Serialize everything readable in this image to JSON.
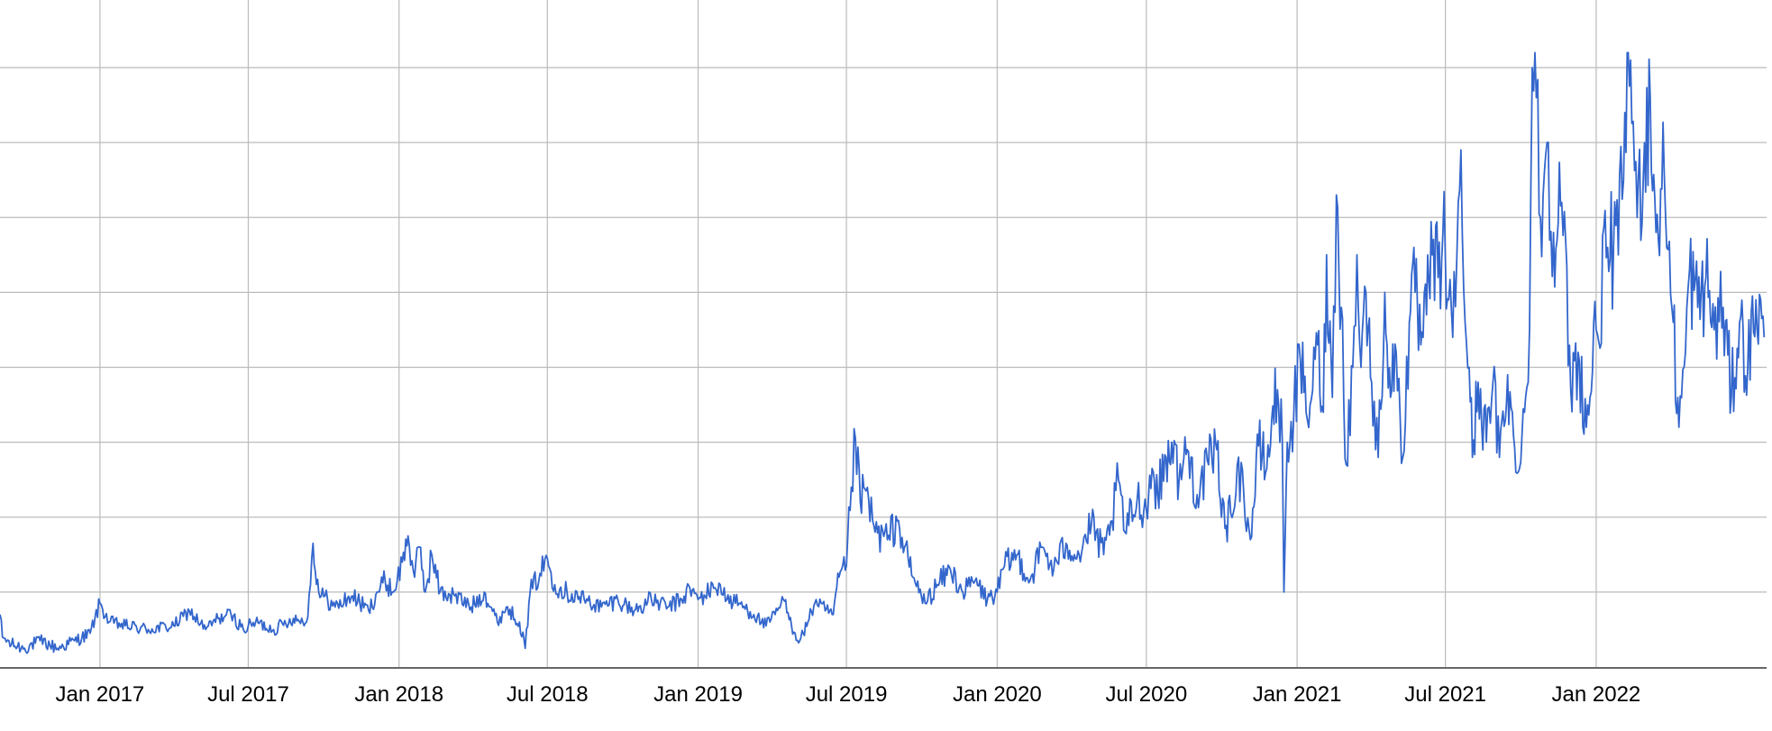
{
  "chart_data": {
    "type": "line",
    "title": "",
    "xlabel": "",
    "ylabel": "",
    "grid": true,
    "legend": "none",
    "xlim": [
      "2016-09-01",
      "2022-07-28"
    ],
    "ylim": [
      0,
      80
    ],
    "x_ticks": [
      {
        "date": "2017-01-01",
        "label": "Jan 2017"
      },
      {
        "date": "2017-07-01",
        "label": "Jul 2017"
      },
      {
        "date": "2018-01-01",
        "label": "Jan 2018"
      },
      {
        "date": "2018-07-01",
        "label": "Jul 2018"
      },
      {
        "date": "2019-01-01",
        "label": "Jan 2019"
      },
      {
        "date": "2019-07-01",
        "label": "Jul 2019"
      },
      {
        "date": "2020-01-01",
        "label": "Jan 2020"
      },
      {
        "date": "2020-07-01",
        "label": "Jul 2020"
      },
      {
        "date": "2021-01-01",
        "label": "Jan 2021"
      },
      {
        "date": "2021-07-01",
        "label": "Jul 2021"
      },
      {
        "date": "2022-01-01",
        "label": "Jan 2022"
      }
    ],
    "y_gridlines": [
      10,
      20,
      30,
      40,
      50,
      60,
      70,
      80
    ],
    "colors": {
      "line": "#3366cc",
      "grid": "#bbbbbb",
      "axis": "#333333"
    },
    "series": [
      {
        "points": [
          [
            "2016-09-01",
            7
          ],
          [
            "2016-09-04",
            4
          ],
          [
            "2016-09-15",
            3
          ],
          [
            "2016-10-01",
            2.5
          ],
          [
            "2016-10-20",
            3.5
          ],
          [
            "2016-11-10",
            2.5
          ],
          [
            "2016-12-01",
            3.5
          ],
          [
            "2016-12-20",
            4.5
          ],
          [
            "2017-01-01",
            8.5
          ],
          [
            "2017-01-12",
            6
          ],
          [
            "2017-02-01",
            5.5
          ],
          [
            "2017-03-01",
            5
          ],
          [
            "2017-04-01",
            5.5
          ],
          [
            "2017-04-20",
            7.5
          ],
          [
            "2017-05-10",
            5
          ],
          [
            "2017-05-25",
            6.5
          ],
          [
            "2017-06-10",
            7
          ],
          [
            "2017-06-25",
            5
          ],
          [
            "2017-07-10",
            6
          ],
          [
            "2017-08-01",
            5
          ],
          [
            "2017-08-25",
            6.5
          ],
          [
            "2017-09-10",
            6
          ],
          [
            "2017-09-15",
            11
          ],
          [
            "2017-09-18",
            16.5
          ],
          [
            "2017-09-25",
            10
          ],
          [
            "2017-10-15",
            8
          ],
          [
            "2017-11-05",
            9.5
          ],
          [
            "2017-11-25",
            7.5
          ],
          [
            "2017-12-05",
            10
          ],
          [
            "2017-12-15",
            11.5
          ],
          [
            "2017-12-25",
            10
          ],
          [
            "2018-01-05",
            14
          ],
          [
            "2018-01-12",
            17.5
          ],
          [
            "2018-01-20",
            12
          ],
          [
            "2018-01-26",
            16
          ],
          [
            "2018-02-02",
            10
          ],
          [
            "2018-02-10",
            15
          ],
          [
            "2018-02-20",
            10
          ],
          [
            "2018-03-10",
            9.5
          ],
          [
            "2018-03-30",
            8
          ],
          [
            "2018-04-15",
            10
          ],
          [
            "2018-05-01",
            6
          ],
          [
            "2018-05-12",
            8
          ],
          [
            "2018-05-28",
            6
          ],
          [
            "2018-06-04",
            2.5
          ],
          [
            "2018-06-10",
            10
          ],
          [
            "2018-06-22",
            12.5
          ],
          [
            "2018-07-01",
            14.5
          ],
          [
            "2018-07-10",
            11
          ],
          [
            "2018-07-25",
            10
          ],
          [
            "2018-08-15",
            9
          ],
          [
            "2018-09-05",
            8
          ],
          [
            "2018-09-25",
            9
          ],
          [
            "2018-10-15",
            7.5
          ],
          [
            "2018-11-05",
            9
          ],
          [
            "2018-11-25",
            8
          ],
          [
            "2018-12-12",
            9
          ],
          [
            "2018-12-22",
            10.5
          ],
          [
            "2019-01-01",
            9
          ],
          [
            "2019-01-20",
            10.5
          ],
          [
            "2019-01-28",
            11
          ],
          [
            "2019-02-05",
            9
          ],
          [
            "2019-02-20",
            8.5
          ],
          [
            "2019-03-10",
            7
          ],
          [
            "2019-03-25",
            5.5
          ],
          [
            "2019-04-05",
            7
          ],
          [
            "2019-04-15",
            9
          ],
          [
            "2019-04-25",
            5.5
          ],
          [
            "2019-05-05",
            3.5
          ],
          [
            "2019-05-15",
            6
          ],
          [
            "2019-05-25",
            9
          ],
          [
            "2019-06-05",
            7.5
          ],
          [
            "2019-06-15",
            7
          ],
          [
            "2019-06-22",
            12
          ],
          [
            "2019-07-01",
            13.5
          ],
          [
            "2019-07-07",
            24
          ],
          [
            "2019-07-12",
            30.5
          ],
          [
            "2019-07-18",
            22
          ],
          [
            "2019-07-25",
            23.5
          ],
          [
            "2019-08-05",
            18
          ],
          [
            "2019-08-20",
            17
          ],
          [
            "2019-09-01",
            19.5
          ],
          [
            "2019-09-10",
            16
          ],
          [
            "2019-09-20",
            12
          ],
          [
            "2019-10-05",
            8.5
          ],
          [
            "2019-10-20",
            11
          ],
          [
            "2019-11-05",
            13
          ],
          [
            "2019-11-20",
            10
          ],
          [
            "2019-12-05",
            11.5
          ],
          [
            "2019-12-20",
            9
          ],
          [
            "2020-01-01",
            10
          ],
          [
            "2020-01-10",
            13.5
          ],
          [
            "2020-01-25",
            15
          ],
          [
            "2020-02-10",
            11.5
          ],
          [
            "2020-02-25",
            16
          ],
          [
            "2020-03-10",
            13
          ],
          [
            "2020-03-25",
            16.5
          ],
          [
            "2020-04-10",
            15
          ],
          [
            "2020-04-25",
            19
          ],
          [
            "2020-05-10",
            15
          ],
          [
            "2020-05-20",
            19.5
          ],
          [
            "2020-05-28",
            25
          ],
          [
            "2020-06-05",
            18
          ],
          [
            "2020-06-20",
            22.5
          ],
          [
            "2020-07-01",
            21
          ],
          [
            "2020-07-08",
            26.5
          ],
          [
            "2020-07-15",
            23
          ],
          [
            "2020-07-25",
            28
          ],
          [
            "2020-08-01",
            30
          ],
          [
            "2020-08-10",
            25
          ],
          [
            "2020-08-20",
            29
          ],
          [
            "2020-09-01",
            23
          ],
          [
            "2020-09-15",
            27
          ],
          [
            "2020-09-25",
            29
          ],
          [
            "2020-10-05",
            18.5
          ],
          [
            "2020-10-12",
            20.5
          ],
          [
            "2020-10-20",
            27
          ],
          [
            "2020-10-28",
            23
          ],
          [
            "2020-11-05",
            17
          ],
          [
            "2020-11-15",
            29.5
          ],
          [
            "2020-11-25",
            26.5
          ],
          [
            "2020-12-01",
            33
          ],
          [
            "2020-12-08",
            37
          ],
          [
            "2020-12-14",
            30
          ],
          [
            "2020-12-16",
            10
          ],
          [
            "2020-12-20",
            30
          ],
          [
            "2020-12-28",
            34
          ],
          [
            "2021-01-05",
            41
          ],
          [
            "2021-01-12",
            34
          ],
          [
            "2021-01-20",
            37
          ],
          [
            "2021-01-26",
            43
          ],
          [
            "2021-02-02",
            34
          ],
          [
            "2021-02-06",
            55
          ],
          [
            "2021-02-13",
            36
          ],
          [
            "2021-02-18",
            63
          ],
          [
            "2021-02-24",
            48
          ],
          [
            "2021-03-02",
            27
          ],
          [
            "2021-03-10",
            40
          ],
          [
            "2021-03-15",
            55
          ],
          [
            "2021-03-20",
            40
          ],
          [
            "2021-03-26",
            50
          ],
          [
            "2021-04-02",
            38
          ],
          [
            "2021-04-10",
            28
          ],
          [
            "2021-04-18",
            50
          ],
          [
            "2021-04-25",
            36
          ],
          [
            "2021-05-02",
            42
          ],
          [
            "2021-05-10",
            28
          ],
          [
            "2021-05-18",
            46
          ],
          [
            "2021-05-25",
            50
          ],
          [
            "2021-06-01",
            43
          ],
          [
            "2021-06-08",
            47
          ],
          [
            "2021-06-15",
            55
          ],
          [
            "2021-06-22",
            52
          ],
          [
            "2021-06-28",
            58
          ],
          [
            "2021-07-05",
            49
          ],
          [
            "2021-07-10",
            44
          ],
          [
            "2021-07-15",
            55
          ],
          [
            "2021-07-20",
            69
          ],
          [
            "2021-07-25",
            46
          ],
          [
            "2021-07-30",
            40
          ],
          [
            "2021-08-03",
            28
          ],
          [
            "2021-08-10",
            38
          ],
          [
            "2021-08-20",
            30
          ],
          [
            "2021-08-28",
            38
          ],
          [
            "2021-09-05",
            28
          ],
          [
            "2021-09-15",
            39
          ],
          [
            "2021-09-25",
            26
          ],
          [
            "2021-10-10",
            38
          ],
          [
            "2021-10-15",
            80
          ],
          [
            "2021-10-20",
            76
          ],
          [
            "2021-10-25",
            60
          ],
          [
            "2021-11-02",
            70
          ],
          [
            "2021-11-10",
            58
          ],
          [
            "2021-11-20",
            62
          ],
          [
            "2021-12-01",
            37
          ],
          [
            "2021-12-10",
            42
          ],
          [
            "2021-12-20",
            32
          ],
          [
            "2022-01-01",
            45
          ],
          [
            "2022-01-15",
            56
          ],
          [
            "2022-01-28",
            55
          ],
          [
            "2022-02-05",
            74
          ],
          [
            "2022-02-12",
            81
          ],
          [
            "2022-02-20",
            60
          ],
          [
            "2022-03-01",
            70
          ],
          [
            "2022-03-08",
            76
          ],
          [
            "2022-03-15",
            58
          ],
          [
            "2022-03-25",
            66
          ],
          [
            "2022-04-05",
            46
          ],
          [
            "2022-04-12",
            32
          ],
          [
            "2022-04-20",
            42
          ],
          [
            "2022-04-25",
            53
          ],
          [
            "2022-05-05",
            48
          ],
          [
            "2022-05-15",
            52
          ],
          [
            "2022-05-25",
            45
          ],
          [
            "2022-06-05",
            48
          ],
          [
            "2022-06-15",
            36
          ],
          [
            "2022-06-25",
            46
          ],
          [
            "2022-07-05",
            40
          ],
          [
            "2022-07-15",
            49
          ],
          [
            "2022-07-25",
            44
          ]
        ]
      }
    ]
  }
}
